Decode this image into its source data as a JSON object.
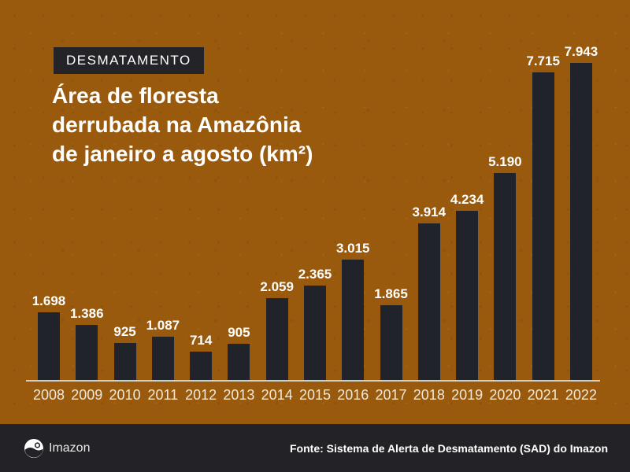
{
  "header": {
    "badge": "DESMATAMENTO",
    "title_lines": [
      "Área de floresta",
      "derrubada na Amazônia",
      "de janeiro a agosto (km²)"
    ]
  },
  "chart_data": {
    "type": "bar",
    "title": "Área de floresta derrubada na Amazônia de janeiro a agosto (km²)",
    "categories": [
      "2008",
      "2009",
      "2010",
      "2011",
      "2012",
      "2013",
      "2014",
      "2015",
      "2016",
      "2017",
      "2018",
      "2019",
      "2020",
      "2021",
      "2022"
    ],
    "values": [
      1698,
      1386,
      925,
      1087,
      714,
      905,
      2059,
      2365,
      3015,
      1865,
      3914,
      4234,
      5190,
      7715,
      7943
    ],
    "value_labels": [
      "1.698",
      "1.386",
      "925",
      "1.087",
      "714",
      "905",
      "2.059",
      "2.365",
      "3.015",
      "1.865",
      "3.914",
      "4.234",
      "5.190",
      "7.715",
      "7.943"
    ],
    "unit": "km²",
    "ylim": [
      0,
      8000
    ],
    "grid": false,
    "legend": false
  },
  "footer": {
    "logo_text": "Imazon",
    "source": "Fonte: Sistema de Alerta de Desmatamento (SAD) do Imazon"
  },
  "colors": {
    "background": "#9A5A0E",
    "bar": "#20242A",
    "badge_bg": "#242428",
    "footer_bg": "#232327",
    "axis_line": "#D8CEBC",
    "value_label": "#FFFFFF",
    "year_label": "#F0E8D9"
  }
}
